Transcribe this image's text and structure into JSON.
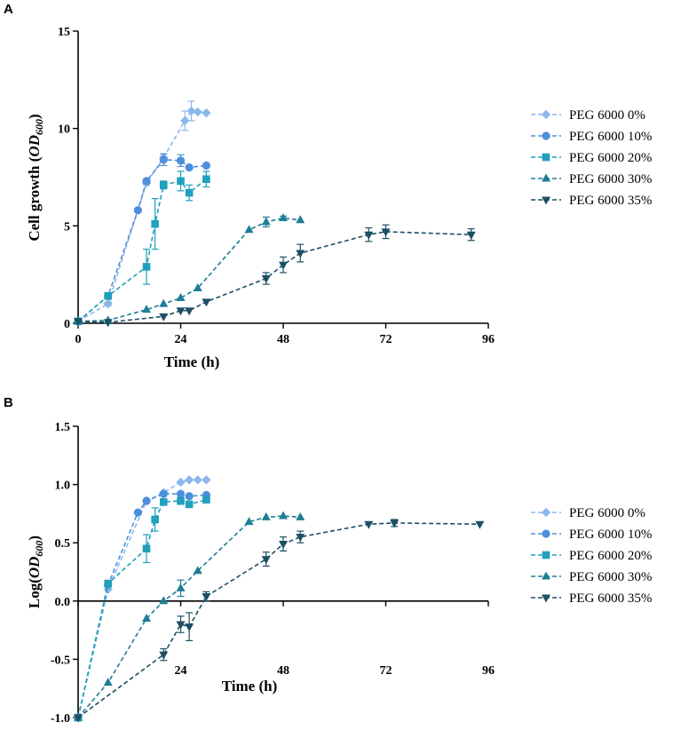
{
  "chart_data": [
    {
      "panel": "A",
      "type": "line",
      "ylabel": "Cell growth",
      "ylabel_math": "OD",
      "ylabel_sub": "600",
      "xlabel": "Time (h)",
      "xlim": [
        0,
        96
      ],
      "ylim": [
        0,
        15
      ],
      "xticks": [
        0,
        24,
        48,
        72,
        96
      ],
      "yticks": [
        0,
        5,
        10,
        15
      ],
      "xtick_labels": [
        "0",
        "24",
        "48",
        "72",
        "96"
      ],
      "ytick_labels": [
        "0",
        "5",
        "10",
        "15"
      ],
      "grid": false,
      "legend": "right",
      "series": [
        {
          "name": "PEG 6000 0%",
          "marker": "diamond",
          "color": "#8ab8ea",
          "x": [
            0,
            7,
            16,
            20,
            25,
            26.5,
            28,
            30
          ],
          "y": [
            0.1,
            1.0,
            7.2,
            8.5,
            10.4,
            10.9,
            10.85,
            10.8
          ],
          "err": [
            0,
            0.1,
            0.1,
            0.2,
            0.5,
            0.5,
            0,
            0
          ]
        },
        {
          "name": "PEG 6000 10%",
          "marker": "circle",
          "color": "#4d8fdb",
          "x": [
            0,
            7,
            14,
            16,
            20,
            24,
            26,
            30
          ],
          "y": [
            0.1,
            1.4,
            5.8,
            7.3,
            8.4,
            8.35,
            8.0,
            8.1
          ],
          "err": [
            0,
            0.1,
            0.1,
            0.1,
            0.3,
            0.3,
            0,
            0
          ]
        },
        {
          "name": "PEG 6000 20%",
          "marker": "square",
          "color": "#20a0bc",
          "x": [
            0,
            7,
            16,
            18,
            20,
            24,
            26,
            30
          ],
          "y": [
            0.1,
            1.4,
            2.9,
            5.1,
            7.1,
            7.3,
            6.7,
            7.4
          ],
          "err": [
            0,
            0.1,
            0.9,
            1.3,
            0.2,
            0.5,
            0.4,
            0.4
          ]
        },
        {
          "name": "PEG 6000 30%",
          "marker": "triangle-up",
          "color": "#1f7e96",
          "x": [
            0,
            7,
            16,
            20,
            24,
            28,
            40,
            44,
            48,
            52
          ],
          "y": [
            0.1,
            0.15,
            0.7,
            1.0,
            1.3,
            1.8,
            4.8,
            5.2,
            5.4,
            5.3
          ],
          "err": [
            0,
            0,
            0,
            0,
            0,
            0,
            0,
            0.25,
            0.1,
            0
          ]
        },
        {
          "name": "PEG 6000 35%",
          "marker": "triangle-down",
          "color": "#1c4f64",
          "x": [
            0,
            7,
            20,
            24,
            26,
            30,
            44,
            48,
            52,
            68,
            72,
            92
          ],
          "y": [
            0.1,
            0.05,
            0.35,
            0.65,
            0.65,
            1.1,
            2.3,
            3.0,
            3.6,
            4.55,
            4.7,
            4.55
          ],
          "err": [
            0,
            0,
            0,
            0,
            0,
            0,
            0.3,
            0.4,
            0.45,
            0.35,
            0.35,
            0.3
          ]
        }
      ]
    },
    {
      "panel": "B",
      "type": "line",
      "ylabel": "Log(",
      "ylabel_math": "OD",
      "ylabel_sub": "600",
      "ylabel_close": ")",
      "xlabel": "Time (h)",
      "xlim": [
        0,
        96
      ],
      "ylim": [
        -1.0,
        1.5
      ],
      "xticks": [
        24,
        48,
        72,
        96
      ],
      "yticks": [
        -1.0,
        -0.5,
        0.0,
        0.5,
        1.0,
        1.5
      ],
      "xtick_labels": [
        "24",
        "48",
        "72",
        "96"
      ],
      "ytick_labels": [
        "-1.0",
        "-0.5",
        "0.0",
        "0.5",
        "1.0",
        "1.5"
      ],
      "grid": false,
      "legend": "right",
      "series": [
        {
          "name": "PEG 6000 0%",
          "marker": "diamond",
          "color": "#8ab8ea",
          "x": [
            0,
            7,
            16,
            20,
            24,
            26,
            28,
            30
          ],
          "y": [
            -1.0,
            0.1,
            0.86,
            0.93,
            1.02,
            1.04,
            1.04,
            1.04
          ],
          "err": [
            0,
            0,
            0,
            0,
            0,
            0,
            0,
            0
          ]
        },
        {
          "name": "PEG 6000 10%",
          "marker": "circle",
          "color": "#4d8fdb",
          "x": [
            0,
            7,
            14,
            16,
            20,
            24,
            26,
            30
          ],
          "y": [
            -1.0,
            0.14,
            0.76,
            0.86,
            0.92,
            0.92,
            0.9,
            0.91
          ],
          "err": [
            0,
            0,
            0,
            0,
            0,
            0,
            0,
            0
          ]
        },
        {
          "name": "PEG 6000 20%",
          "marker": "square",
          "color": "#20a0bc",
          "x": [
            0,
            7,
            16,
            18,
            20,
            24,
            26,
            30
          ],
          "y": [
            -1.0,
            0.15,
            0.45,
            0.7,
            0.85,
            0.86,
            0.83,
            0.87
          ],
          "err": [
            0,
            0,
            0.12,
            0.1,
            0,
            0.03,
            0,
            0
          ]
        },
        {
          "name": "PEG 6000 30%",
          "marker": "triangle-up",
          "color": "#1f7e96",
          "x": [
            0,
            7,
            16,
            20,
            24,
            28,
            40,
            44,
            48,
            52
          ],
          "y": [
            -1.0,
            -0.7,
            -0.15,
            0.0,
            0.11,
            0.26,
            0.68,
            0.72,
            0.73,
            0.72
          ],
          "err": [
            0,
            0,
            0,
            0,
            0.07,
            0,
            0,
            0,
            0,
            0
          ]
        },
        {
          "name": "PEG 6000 35%",
          "marker": "triangle-down",
          "color": "#1c4f64",
          "x": [
            0,
            20,
            24,
            26,
            30,
            44,
            48,
            52,
            68,
            74,
            94
          ],
          "y": [
            -1.0,
            -0.46,
            -0.2,
            -0.22,
            0.04,
            0.36,
            0.49,
            0.55,
            0.66,
            0.67,
            0.66
          ],
          "err": [
            0,
            0.05,
            0.07,
            0.12,
            0.04,
            0.06,
            0.06,
            0.05,
            0,
            0.03,
            0
          ]
        }
      ]
    }
  ]
}
